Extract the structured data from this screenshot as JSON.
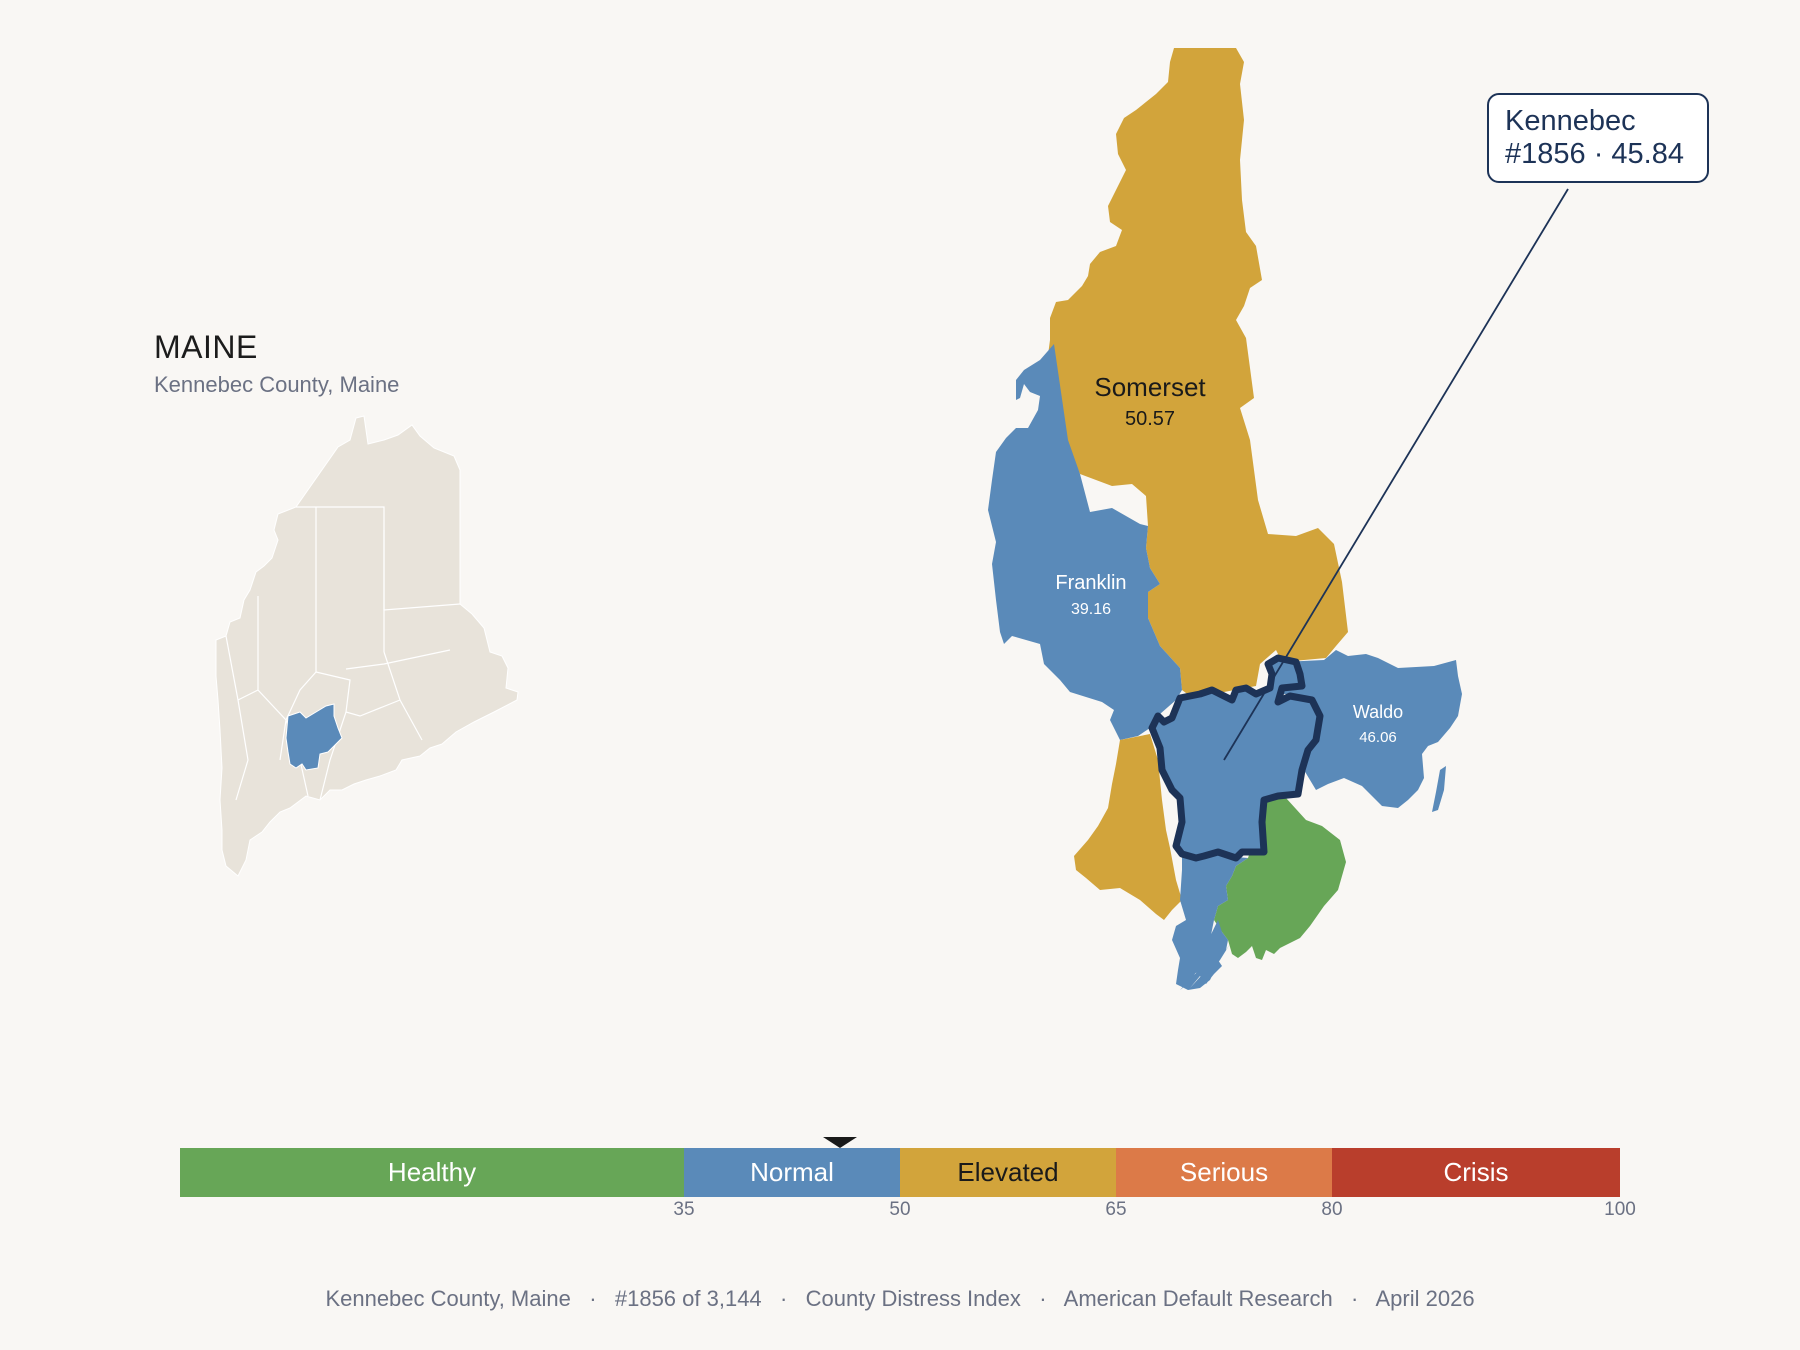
{
  "header": {
    "title": "MAINE",
    "subtitle": "Kennebec County, Maine"
  },
  "inset": {
    "state_fill": "#e8e3da",
    "highlight_fill": "#5a8ab9",
    "highlight_county": "Kennebec"
  },
  "map": {
    "counties": [
      {
        "name": "Somerset",
        "score": "50.57",
        "category": "Elevated"
      },
      {
        "name": "Franklin",
        "score": "39.16",
        "category": "Normal"
      },
      {
        "name": "Waldo",
        "score": "46.06",
        "category": "Normal"
      },
      {
        "name": "Kennebec",
        "score": "45.84",
        "category": "Normal",
        "selected": true
      },
      {
        "name": "",
        "category": "Elevated"
      },
      {
        "name": "",
        "category": "Normal"
      },
      {
        "name": "",
        "category": "Healthy"
      }
    ],
    "selected_outline_color": "#1d3357"
  },
  "callout": {
    "line1": "Kennebec",
    "line2": "#1856 · 45.84"
  },
  "scale": {
    "segments": [
      {
        "label": "Healthy",
        "min": 0,
        "max": 35,
        "color": "#67a657",
        "text_color": "#ffffff"
      },
      {
        "label": "Normal",
        "min": 35,
        "max": 50,
        "color": "#5a8ab9",
        "text_color": "#ffffff"
      },
      {
        "label": "Elevated",
        "min": 50,
        "max": 65,
        "color": "#d2a43b",
        "text_color": "#1a1a1a"
      },
      {
        "label": "Serious",
        "min": 65,
        "max": 80,
        "color": "#dc7a48",
        "text_color": "#ffffff"
      },
      {
        "label": "Crisis",
        "min": 80,
        "max": 100,
        "color": "#b93e2c",
        "text_color": "#ffffff"
      }
    ],
    "ticks": [
      "35",
      "50",
      "65",
      "80",
      "100"
    ],
    "marker_value": 45.84
  },
  "footer": {
    "county": "Kennebec County, Maine",
    "rank": "#1856 of 3,144",
    "index": "County Distress Index",
    "source": "American Default Research",
    "date": "April 2026"
  }
}
